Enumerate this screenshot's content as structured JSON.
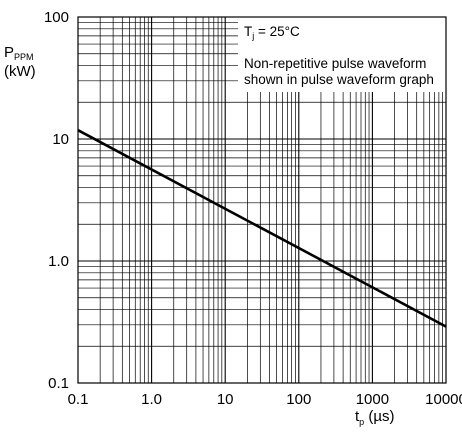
{
  "chart_data": {
    "type": "line",
    "x_scale": "log",
    "y_scale": "log",
    "xlim": [
      0.1,
      10000
    ],
    "ylim": [
      0.1,
      100
    ],
    "x_ticks": [
      "0.1",
      "1.0",
      "10",
      "100",
      "1000",
      "10000"
    ],
    "y_ticks": [
      "0.1",
      "1.0",
      "10",
      "100"
    ],
    "ylabel": {
      "main": "P",
      "sub": "PPM",
      "unit": "(kW)"
    },
    "xlabel": {
      "main": "t",
      "sub": "p",
      "unit": " (µs)"
    },
    "grid": true,
    "annotation": {
      "temp_main": "T",
      "temp_sub": "j",
      "temp_value": " = 25°C",
      "line1": "Non-repetitive pulse waveform",
      "line2": "shown in pulse waveform graph"
    },
    "series": [
      {
        "x": [
          0.1,
          10000
        ],
        "y": [
          11.8,
          0.29
        ],
        "color": "#000000"
      }
    ]
  }
}
